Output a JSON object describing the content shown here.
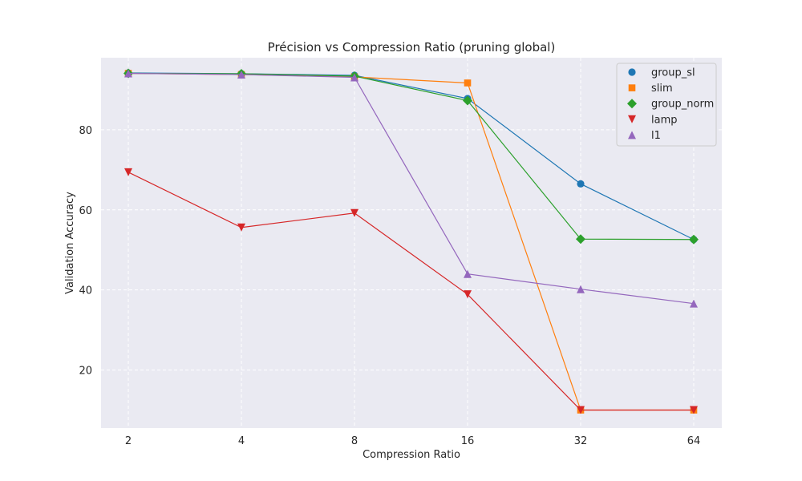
{
  "chart_data": {
    "type": "line",
    "title": "Précision vs Compression Ratio (pruning global)",
    "xlabel": "Compression Ratio",
    "ylabel": "Validation Accuracy",
    "x_scale": "log2",
    "x": [
      2,
      4,
      8,
      16,
      32,
      64
    ],
    "x_tick_labels": [
      "2",
      "4",
      "8",
      "16",
      "32",
      "64"
    ],
    "ylim": [
      5.5,
      98
    ],
    "y_ticks": [
      20,
      40,
      60,
      80
    ],
    "grid": true,
    "legend_position": "top-right",
    "series": [
      {
        "name": "group_sl",
        "color": "#1f77b4",
        "marker": "circle",
        "values": [
          94.2,
          94.0,
          93.6,
          87.8,
          66.5,
          52.6
        ]
      },
      {
        "name": "slim",
        "color": "#ff7f0e",
        "marker": "square",
        "values": [
          94.1,
          93.8,
          93.2,
          91.7,
          10.0,
          10.0
        ]
      },
      {
        "name": "group_norm",
        "color": "#2ca02c",
        "marker": "diamond",
        "values": [
          94.1,
          94.0,
          93.4,
          87.3,
          52.7,
          52.6
        ]
      },
      {
        "name": "lamp",
        "color": "#d62728",
        "marker": "triangle-down",
        "values": [
          69.4,
          55.6,
          59.2,
          38.9,
          10.0,
          10.0
        ]
      },
      {
        "name": "l1",
        "color": "#9467bd",
        "marker": "triangle-up",
        "values": [
          94.1,
          93.8,
          93.1,
          44.0,
          40.2,
          36.6
        ]
      }
    ]
  }
}
